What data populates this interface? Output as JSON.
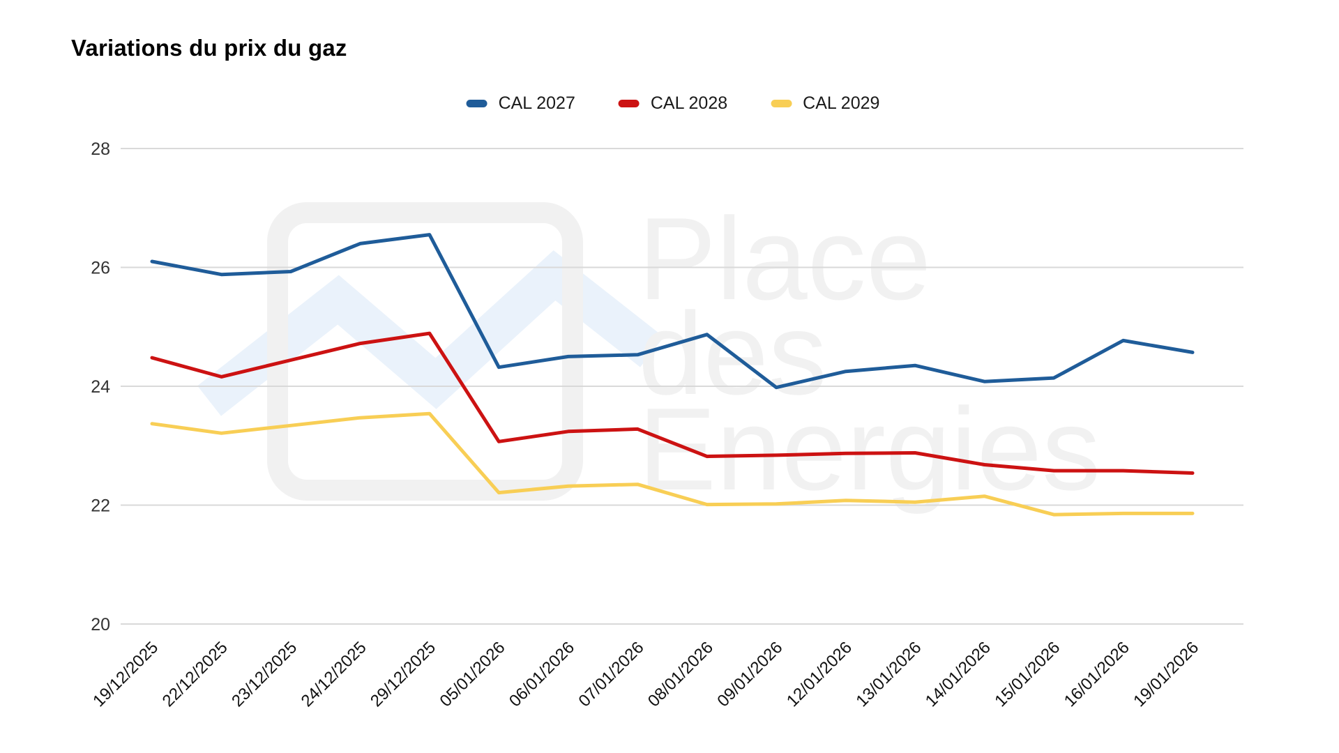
{
  "watermark": {
    "lines": [
      "Place",
      "des",
      "Energies"
    ]
  },
  "chart_data": {
    "type": "line",
    "title": "Variations du prix du gaz",
    "xlabel": "",
    "ylabel": "",
    "grid": true,
    "legend_position": "top",
    "ylim": [
      20,
      28
    ],
    "yticks": [
      28,
      26,
      24,
      22,
      20
    ],
    "categories": [
      "19/12/2025",
      "22/12/2025",
      "23/12/2025",
      "24/12/2025",
      "29/12/2025",
      "05/01/2026",
      "06/01/2026",
      "07/01/2026",
      "08/01/2026",
      "09/01/2026",
      "12/01/2026",
      "13/01/2026",
      "14/01/2026",
      "15/01/2026",
      "16/01/2026",
      "19/01/2026"
    ],
    "series": [
      {
        "name": "CAL 2027",
        "color": "#1f5c99",
        "values": [
          26.1,
          25.88,
          25.93,
          26.4,
          26.55,
          24.32,
          24.5,
          24.53,
          24.87,
          23.98,
          24.25,
          24.35,
          24.08,
          24.14,
          24.77,
          24.57
        ]
      },
      {
        "name": "CAL 2028",
        "color": "#cc1212",
        "values": [
          24.48,
          24.16,
          24.44,
          24.72,
          24.89,
          23.07,
          23.24,
          23.28,
          22.82,
          22.84,
          22.87,
          22.88,
          22.68,
          22.58,
          22.58,
          22.54
        ]
      },
      {
        "name": "CAL 2029",
        "color": "#f8ce55",
        "values": [
          23.37,
          23.21,
          23.34,
          23.47,
          23.54,
          22.21,
          22.32,
          22.35,
          22.01,
          22.02,
          22.08,
          22.05,
          22.15,
          21.84,
          21.86,
          21.86
        ]
      }
    ],
    "colors": {
      "gridline": "#d9d9d9",
      "y_tick_text": "#333333",
      "x_tick_text": "#111111",
      "watermark_text": "#f1f1f1",
      "watermark_logo": "#f1f1f1",
      "watermark_zigzag": "#eaf2fb"
    }
  }
}
